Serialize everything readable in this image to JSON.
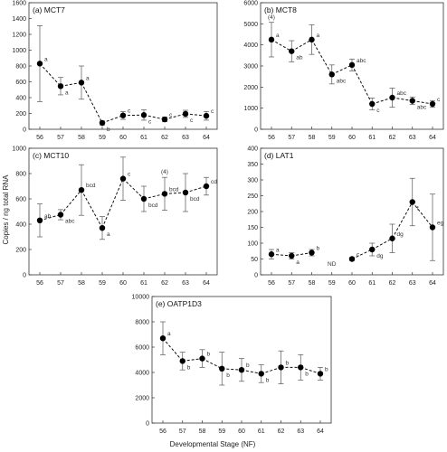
{
  "ylabel": "Copies / ng total RNA",
  "xlabel": "Developmental Stage (NF)",
  "chart_data": [
    {
      "type": "line",
      "title": "(a) MCT7",
      "categories": [
        "56",
        "57",
        "58",
        "59",
        "60",
        "61",
        "62",
        "63",
        "64"
      ],
      "ylim": [
        0,
        1600
      ],
      "yticks": [
        0,
        200,
        400,
        600,
        800,
        1000,
        1200,
        1400,
        1600
      ],
      "series": [
        {
          "values": [
            830,
            545,
            590,
            80,
            175,
            180,
            125,
            195,
            170
          ],
          "err": [
            480,
            110,
            210,
            25,
            50,
            65,
            30,
            45,
            55
          ],
          "gaps_after": [],
          "labels": [
            "a",
            "a",
            "a",
            "b",
            "c",
            "c",
            "c",
            "c",
            "c"
          ]
        }
      ],
      "annotations": [],
      "grid": false
    },
    {
      "type": "line",
      "title": "(b) MCT8",
      "categories": [
        "56",
        "57",
        "58",
        "59",
        "60",
        "61",
        "62",
        "63",
        "64"
      ],
      "ylim": [
        0,
        6000
      ],
      "yticks": [
        0,
        1000,
        2000,
        3000,
        4000,
        5000,
        6000
      ],
      "series": [
        {
          "values": [
            4250,
            3700,
            4250,
            2600,
            3050,
            1200,
            1500,
            1350,
            1200
          ],
          "err": [
            820,
            500,
            700,
            450,
            280,
            280,
            450,
            180,
            160
          ],
          "gaps_after": [],
          "labels": [
            "a",
            "ab",
            "a",
            "abc",
            "abc",
            "c",
            "abc",
            "abc",
            "c"
          ]
        }
      ],
      "annotations": [
        {
          "text": "(4)",
          "category": "56"
        }
      ],
      "grid": false
    },
    {
      "type": "line",
      "title": "(c) MCT10",
      "categories": [
        "56",
        "57",
        "58",
        "59",
        "60",
        "61",
        "62",
        "63",
        "64"
      ],
      "ylim": [
        0,
        1000
      ],
      "yticks": [
        0,
        200,
        400,
        600,
        800,
        1000
      ],
      "series": [
        {
          "values": [
            430,
            475,
            670,
            370,
            760,
            600,
            640,
            650,
            700
          ],
          "err": [
            130,
            40,
            200,
            90,
            170,
            100,
            130,
            150,
            70
          ],
          "gaps_after": [],
          "labels": [
            "ab",
            "abc",
            "bcd",
            "a",
            "c",
            "bcd",
            "bcd",
            "bcd",
            "cd"
          ]
        }
      ],
      "annotations": [
        {
          "text": "(4)",
          "category": "62"
        }
      ],
      "grid": false
    },
    {
      "type": "line",
      "title": "(d) LAT1",
      "categories": [
        "56",
        "57",
        "58",
        "59",
        "60",
        "61",
        "62",
        "63",
        "64"
      ],
      "ylim": [
        0,
        400
      ],
      "yticks": [
        0,
        50,
        100,
        150,
        200,
        250,
        300,
        350,
        400
      ],
      "series": [
        {
          "values": [
            65,
            60,
            70,
            null,
            50,
            80,
            115,
            230,
            150
          ],
          "err": [
            15,
            10,
            10,
            null,
            5,
            20,
            45,
            75,
            105
          ],
          "gaps_after": [
            "58"
          ],
          "labels": [
            "a",
            "a",
            "b",
            "",
            "c",
            "dg",
            "dg",
            "f",
            "eg"
          ]
        }
      ],
      "annotations": [
        {
          "text": "ND",
          "category": "59"
        }
      ],
      "grid": false
    },
    {
      "type": "line",
      "title": "(e) OATP1D3",
      "categories": [
        "56",
        "57",
        "58",
        "59",
        "60",
        "61",
        "62",
        "63",
        "64"
      ],
      "ylim": [
        0,
        10000
      ],
      "yticks": [
        0,
        2000,
        4000,
        6000,
        8000,
        10000
      ],
      "series": [
        {
          "values": [
            6700,
            4900,
            5100,
            4300,
            4200,
            3900,
            4400,
            4400,
            3900
          ],
          "err": [
            1300,
            700,
            700,
            1300,
            900,
            700,
            1300,
            1000,
            500
          ],
          "gaps_after": [],
          "labels": [
            "a",
            "b",
            "b",
            "b",
            "b",
            "b",
            "b",
            "b",
            "b"
          ]
        }
      ],
      "annotations": [],
      "grid": false
    }
  ]
}
